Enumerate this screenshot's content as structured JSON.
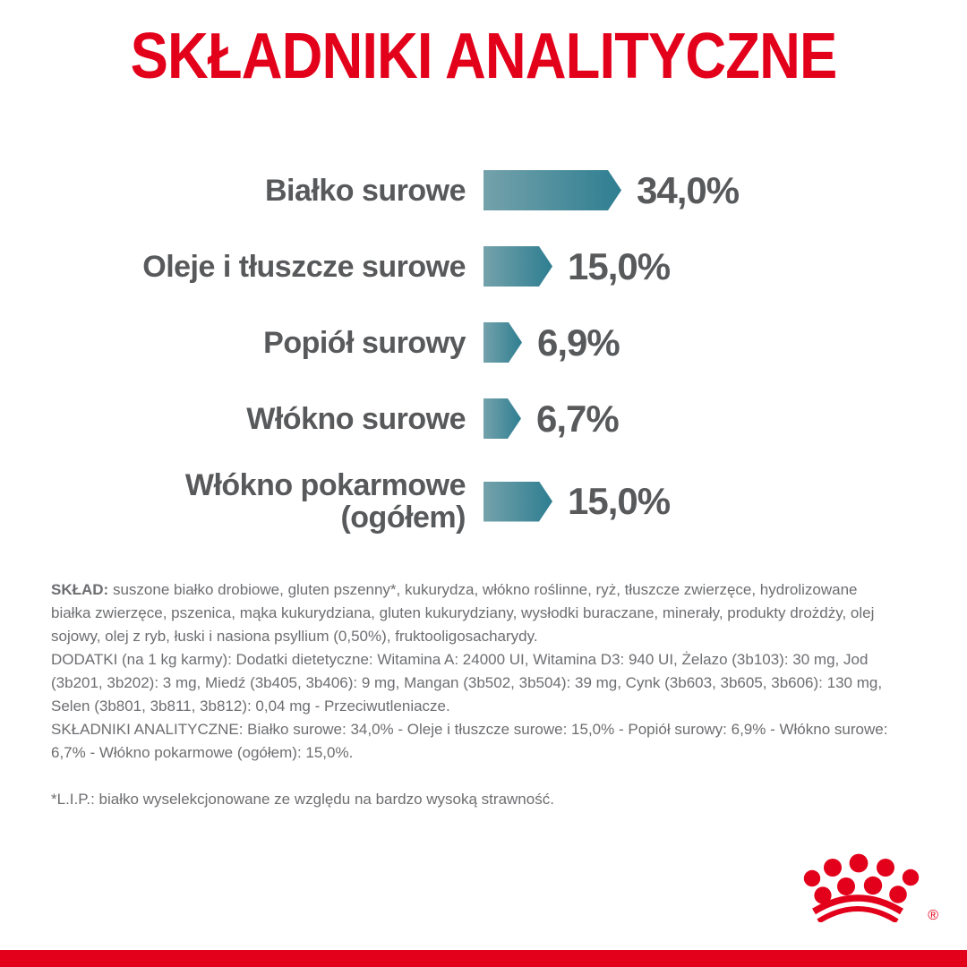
{
  "title": "SKŁADNIKI ANALITYCZNE",
  "colors": {
    "brand_red": "#E2001A",
    "bar_gradient_start": "#74A2AB",
    "bar_gradient_end": "#2E7E91",
    "chart_text_gray": "#58595B",
    "body_text_gray": "#6D6E71"
  },
  "chart_data": {
    "type": "bar",
    "orientation": "horizontal",
    "unit": "%",
    "title": "SKŁADNIKI ANALITYCZNE",
    "categories": [
      "Białko surowe",
      "Oleje i tłuszcze surowe",
      "Popiół surowy",
      "Włókno surowe",
      "Włókno pokarmowe\n(ogółem)"
    ],
    "values": [
      34.0,
      15.0,
      6.9,
      6.7,
      15.0
    ],
    "value_labels": [
      "34,0%",
      "15,0%",
      "6,9%",
      "6,7%",
      "15,0%"
    ],
    "legend": "none",
    "grid": "off",
    "bar_style": "arrow-right-gradient"
  },
  "body": {
    "sklad_label": "SKŁAD:",
    "sklad_text": "suszone białko drobiowe, gluten pszenny*, kukurydza, włókno roślinne, ryż, tłuszcze zwierzęce, hydrolizowane białka zwierzęce, pszenica, mąka kukurydziana, gluten kukurydziany, wysłodki buraczane, minerały, produkty drożdży, olej sojowy, olej z ryb, łuski i nasiona psyllium (0,50%), fruktooligosacharydy.",
    "dodatki_text": "DODATKI (na 1 kg karmy): Dodatki dietetyczne: Witamina A: 24000 UI, Witamina D3: 940 UI, Żelazo (3b103): 30 mg, Jod (3b201, 3b202): 3 mg, Miedź (3b405, 3b406): 9 mg, Mangan (3b502, 3b504): 39 mg, Cynk (3b603, 3b605, 3b606): 130 mg, Selen (3b801, 3b811, 3b812): 0,04 mg - Przeciwutleniacze.",
    "analityczne_text": "SKŁADNIKI ANALITYCZNE: Białko surowe: 34,0% - Oleje i tłuszcze surowe: 15,0% - Popiół surowy: 6,9% - Włókno surowe: 6,7% - Włókno pokarmowe (ogółem): 15,0%.",
    "lip_text": "*L.I.P.: białko wyselekcjonowane ze względu na bardzo wysoką strawność."
  },
  "footer": {
    "logo": "royal-canin-crown",
    "registered_mark": "®"
  }
}
